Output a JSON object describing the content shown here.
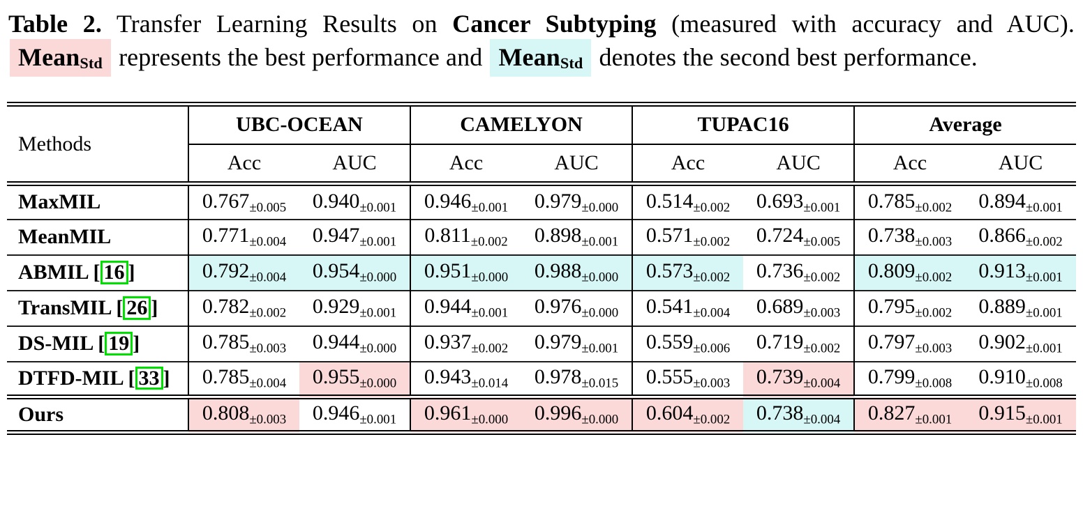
{
  "colors": {
    "best_bg": "#fcd9d9",
    "second_bg": "#d7f6f6",
    "cite_border": "#00e000"
  },
  "caption": {
    "label": "Table 2.",
    "part1": "Transfer Learning Results on",
    "task": "Cancer Subtyping",
    "part2": "(measured with accuracy and AUC).",
    "best_token_main": "Mean",
    "best_token_sub": "Std",
    "part3": "represents the best performance and",
    "second_token_main": "Mean",
    "second_token_sub": "Std",
    "part4": "denotes the second best performance."
  },
  "table": {
    "methods_header": "Methods",
    "groups": [
      "UBC-OCEAN",
      "CAMELYON",
      "TUPAC16",
      "Average"
    ],
    "subheaders": [
      "Acc",
      "AUC",
      "Acc",
      "AUC",
      "Acc",
      "AUC",
      "Acc",
      "AUC"
    ],
    "rows": [
      {
        "method": "MaxMIL",
        "cite": "",
        "cells": [
          {
            "v": "0.767",
            "s": "±0.005",
            "h": ""
          },
          {
            "v": "0.940",
            "s": "±0.001",
            "h": ""
          },
          {
            "v": "0.946",
            "s": "±0.001",
            "h": ""
          },
          {
            "v": "0.979",
            "s": "±0.000",
            "h": ""
          },
          {
            "v": "0.514",
            "s": "±0.002",
            "h": ""
          },
          {
            "v": "0.693",
            "s": "±0.001",
            "h": ""
          },
          {
            "v": "0.785",
            "s": "±0.002",
            "h": ""
          },
          {
            "v": "0.894",
            "s": "±0.001",
            "h": ""
          }
        ]
      },
      {
        "method": "MeanMIL",
        "cite": "",
        "cells": [
          {
            "v": "0.771",
            "s": "±0.004",
            "h": ""
          },
          {
            "v": "0.947",
            "s": "±0.001",
            "h": ""
          },
          {
            "v": "0.811",
            "s": "±0.002",
            "h": ""
          },
          {
            "v": "0.898",
            "s": "±0.001",
            "h": ""
          },
          {
            "v": "0.571",
            "s": "±0.002",
            "h": ""
          },
          {
            "v": "0.724",
            "s": "±0.005",
            "h": ""
          },
          {
            "v": "0.738",
            "s": "±0.003",
            "h": ""
          },
          {
            "v": "0.866",
            "s": "±0.002",
            "h": ""
          }
        ]
      },
      {
        "method": "ABMIL",
        "cite": "16",
        "cells": [
          {
            "v": "0.792",
            "s": "±0.004",
            "h": "second"
          },
          {
            "v": "0.954",
            "s": "±0.000",
            "h": "second"
          },
          {
            "v": "0.951",
            "s": "±0.000",
            "h": "second"
          },
          {
            "v": "0.988",
            "s": "±0.000",
            "h": "second"
          },
          {
            "v": "0.573",
            "s": "±0.002",
            "h": "second"
          },
          {
            "v": "0.736",
            "s": "±0.002",
            "h": ""
          },
          {
            "v": "0.809",
            "s": "±0.002",
            "h": "second"
          },
          {
            "v": "0.913",
            "s": "±0.001",
            "h": "second"
          }
        ]
      },
      {
        "method": "TransMIL",
        "cite": "26",
        "cells": [
          {
            "v": "0.782",
            "s": "±0.002",
            "h": ""
          },
          {
            "v": "0.929",
            "s": "±0.001",
            "h": ""
          },
          {
            "v": "0.944",
            "s": "±0.001",
            "h": ""
          },
          {
            "v": "0.976",
            "s": "±0.000",
            "h": ""
          },
          {
            "v": "0.541",
            "s": "±0.004",
            "h": ""
          },
          {
            "v": "0.689",
            "s": "±0.003",
            "h": ""
          },
          {
            "v": "0.795",
            "s": "±0.002",
            "h": ""
          },
          {
            "v": "0.889",
            "s": "±0.001",
            "h": ""
          }
        ]
      },
      {
        "method": "DS-MIL",
        "cite": "19",
        "cells": [
          {
            "v": "0.785",
            "s": "±0.003",
            "h": ""
          },
          {
            "v": "0.944",
            "s": "±0.000",
            "h": ""
          },
          {
            "v": "0.937",
            "s": "±0.002",
            "h": ""
          },
          {
            "v": "0.979",
            "s": "±0.001",
            "h": ""
          },
          {
            "v": "0.559",
            "s": "±0.006",
            "h": ""
          },
          {
            "v": "0.719",
            "s": "±0.002",
            "h": ""
          },
          {
            "v": "0.797",
            "s": "±0.003",
            "h": ""
          },
          {
            "v": "0.902",
            "s": "±0.001",
            "h": ""
          }
        ]
      },
      {
        "method": "DTFD-MIL",
        "cite": "33",
        "cells": [
          {
            "v": "0.785",
            "s": "±0.004",
            "h": ""
          },
          {
            "v": "0.955",
            "s": "±0.000",
            "h": "best"
          },
          {
            "v": "0.943",
            "s": "±0.014",
            "h": ""
          },
          {
            "v": "0.978",
            "s": "±0.015",
            "h": ""
          },
          {
            "v": "0.555",
            "s": "±0.003",
            "h": ""
          },
          {
            "v": "0.739",
            "s": "±0.004",
            "h": "best"
          },
          {
            "v": "0.799",
            "s": "±0.008",
            "h": ""
          },
          {
            "v": "0.910",
            "s": "±0.008",
            "h": ""
          }
        ]
      },
      {
        "method": "Ours",
        "cite": "",
        "ours": true,
        "cells": [
          {
            "v": "0.808",
            "s": "±0.003",
            "h": "best"
          },
          {
            "v": "0.946",
            "s": "±0.001",
            "h": ""
          },
          {
            "v": "0.961",
            "s": "±0.000",
            "h": "best"
          },
          {
            "v": "0.996",
            "s": "±0.000",
            "h": "best"
          },
          {
            "v": "0.604",
            "s": "±0.002",
            "h": "best"
          },
          {
            "v": "0.738",
            "s": "±0.004",
            "h": "second"
          },
          {
            "v": "0.827",
            "s": "±0.001",
            "h": "best"
          },
          {
            "v": "0.915",
            "s": "±0.001",
            "h": "best"
          }
        ]
      }
    ]
  }
}
